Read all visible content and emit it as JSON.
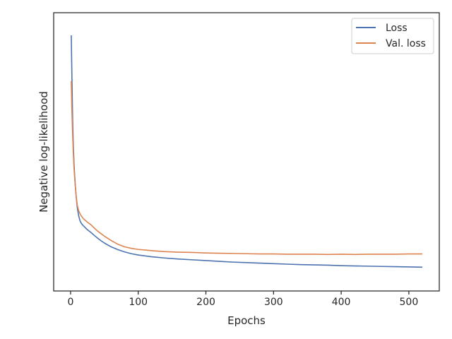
{
  "chart_data": {
    "type": "line",
    "title": "",
    "xlabel": "Epochs",
    "ylabel": "Negative log-likelihood",
    "xlim": [
      -25,
      545
    ],
    "ylim": [
      0,
      100
    ],
    "x_ticks": [
      0,
      100,
      200,
      300,
      400,
      500
    ],
    "y_ticks_shown": false,
    "grid": false,
    "legend_position": "top-right",
    "series": [
      {
        "name": "Loss",
        "color": "#4c72b0",
        "x": [
          1,
          2,
          3,
          4,
          5,
          6,
          7,
          8,
          9,
          10,
          12,
          14,
          16,
          18,
          20,
          25,
          30,
          35,
          40,
          45,
          50,
          60,
          70,
          80,
          90,
          100,
          120,
          140,
          160,
          180,
          200,
          220,
          240,
          260,
          280,
          300,
          320,
          340,
          360,
          380,
          400,
          420,
          440,
          460,
          480,
          500,
          520
        ],
        "y": [
          95,
          78,
          62,
          52,
          45,
          40,
          36,
          32.5,
          29.5,
          27,
          24,
          22,
          21,
          20.3,
          19.8,
          18.5,
          17.5,
          16.3,
          15.2,
          14.2,
          13.3,
          11.8,
          10.7,
          9.8,
          9.1,
          8.6,
          7.9,
          7.4,
          7.0,
          6.7,
          6.4,
          6.1,
          5.8,
          5.6,
          5.4,
          5.2,
          5.0,
          4.8,
          4.7,
          4.6,
          4.4,
          4.3,
          4.2,
          4.1,
          4.0,
          3.9,
          3.8
        ]
      },
      {
        "name": "Val. loss",
        "color": "#dd8452",
        "x": [
          1,
          2,
          3,
          4,
          5,
          6,
          7,
          8,
          9,
          10,
          12,
          14,
          16,
          18,
          20,
          25,
          30,
          35,
          40,
          45,
          50,
          60,
          70,
          80,
          90,
          100,
          120,
          140,
          160,
          180,
          200,
          220,
          240,
          260,
          280,
          300,
          320,
          340,
          360,
          380,
          400,
          420,
          440,
          460,
          480,
          500,
          520
        ],
        "y": [
          77,
          65,
          56,
          49,
          43,
          39,
          35.5,
          32.5,
          30,
          28,
          26,
          24.8,
          23.9,
          23.2,
          22.6,
          21.5,
          20.5,
          19.2,
          18,
          17,
          16,
          14.3,
          12.8,
          11.8,
          11.2,
          10.8,
          10.3,
          9.9,
          9.7,
          9.6,
          9.4,
          9.3,
          9.2,
          9.1,
          9.0,
          9.0,
          8.9,
          8.9,
          8.9,
          8.8,
          8.9,
          8.8,
          8.9,
          8.9,
          8.9,
          9.0,
          9.0
        ]
      }
    ]
  }
}
